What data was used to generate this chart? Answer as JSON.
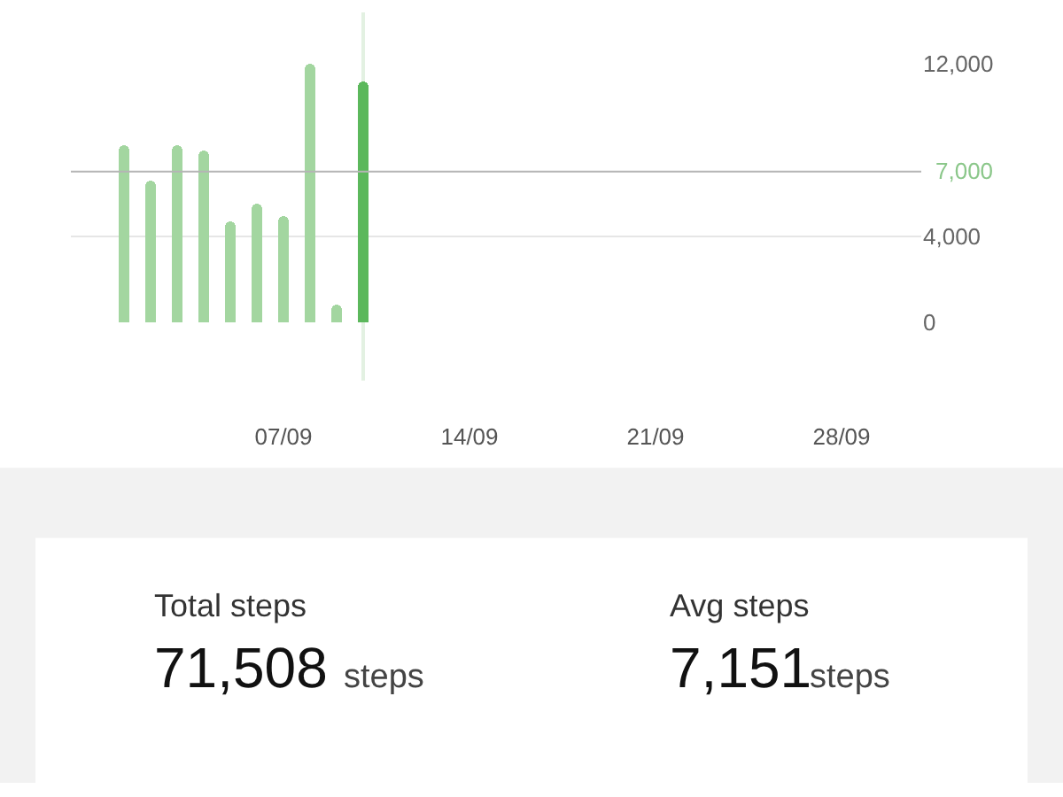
{
  "chart_data": {
    "type": "bar",
    "x": [
      "--09-01",
      "--09-02",
      "--09-03",
      "--09-04",
      "--09-05",
      "--09-06",
      "--09-07",
      "--09-08",
      "--09-09",
      "--09-10"
    ],
    "values": [
      8200,
      6600,
      8200,
      8000,
      4700,
      5500,
      4900,
      12000,
      800,
      11200
    ],
    "colors": [
      "#a3d6a0",
      "#a3d6a0",
      "#a3d6a0",
      "#a3d6a0",
      "#a3d6a0",
      "#a3d6a0",
      "#a3d6a0",
      "#a3d6a0",
      "#a3d6a0",
      "#5cb85c"
    ],
    "xlim": [
      "--08-30",
      "--10-01"
    ],
    "xticks": [
      {
        "value": "--09-07",
        "label": "07/09"
      },
      {
        "value": "--09-14",
        "label": "14/09"
      },
      {
        "value": "--09-21",
        "label": "21/09"
      },
      {
        "value": "--09-28",
        "label": "28/09"
      }
    ],
    "ylim": [
      0,
      12000
    ],
    "yticks": [
      {
        "value": 0,
        "label": "0"
      },
      {
        "value": 4000,
        "label": "4,000"
      },
      {
        "value": 12000,
        "label": "12,000"
      }
    ],
    "ref_lines": [
      {
        "axis": "y",
        "value": 7000,
        "label": "7,000",
        "color": "#b5b5b5"
      },
      {
        "axis": "x",
        "value": "--09-10",
        "label": null,
        "color": "#e3f1e2"
      }
    ],
    "grid": "y",
    "annotations": [
      "Total steps",
      "71,508",
      "steps",
      "Avg steps",
      "7,151",
      "steps"
    ]
  }
}
